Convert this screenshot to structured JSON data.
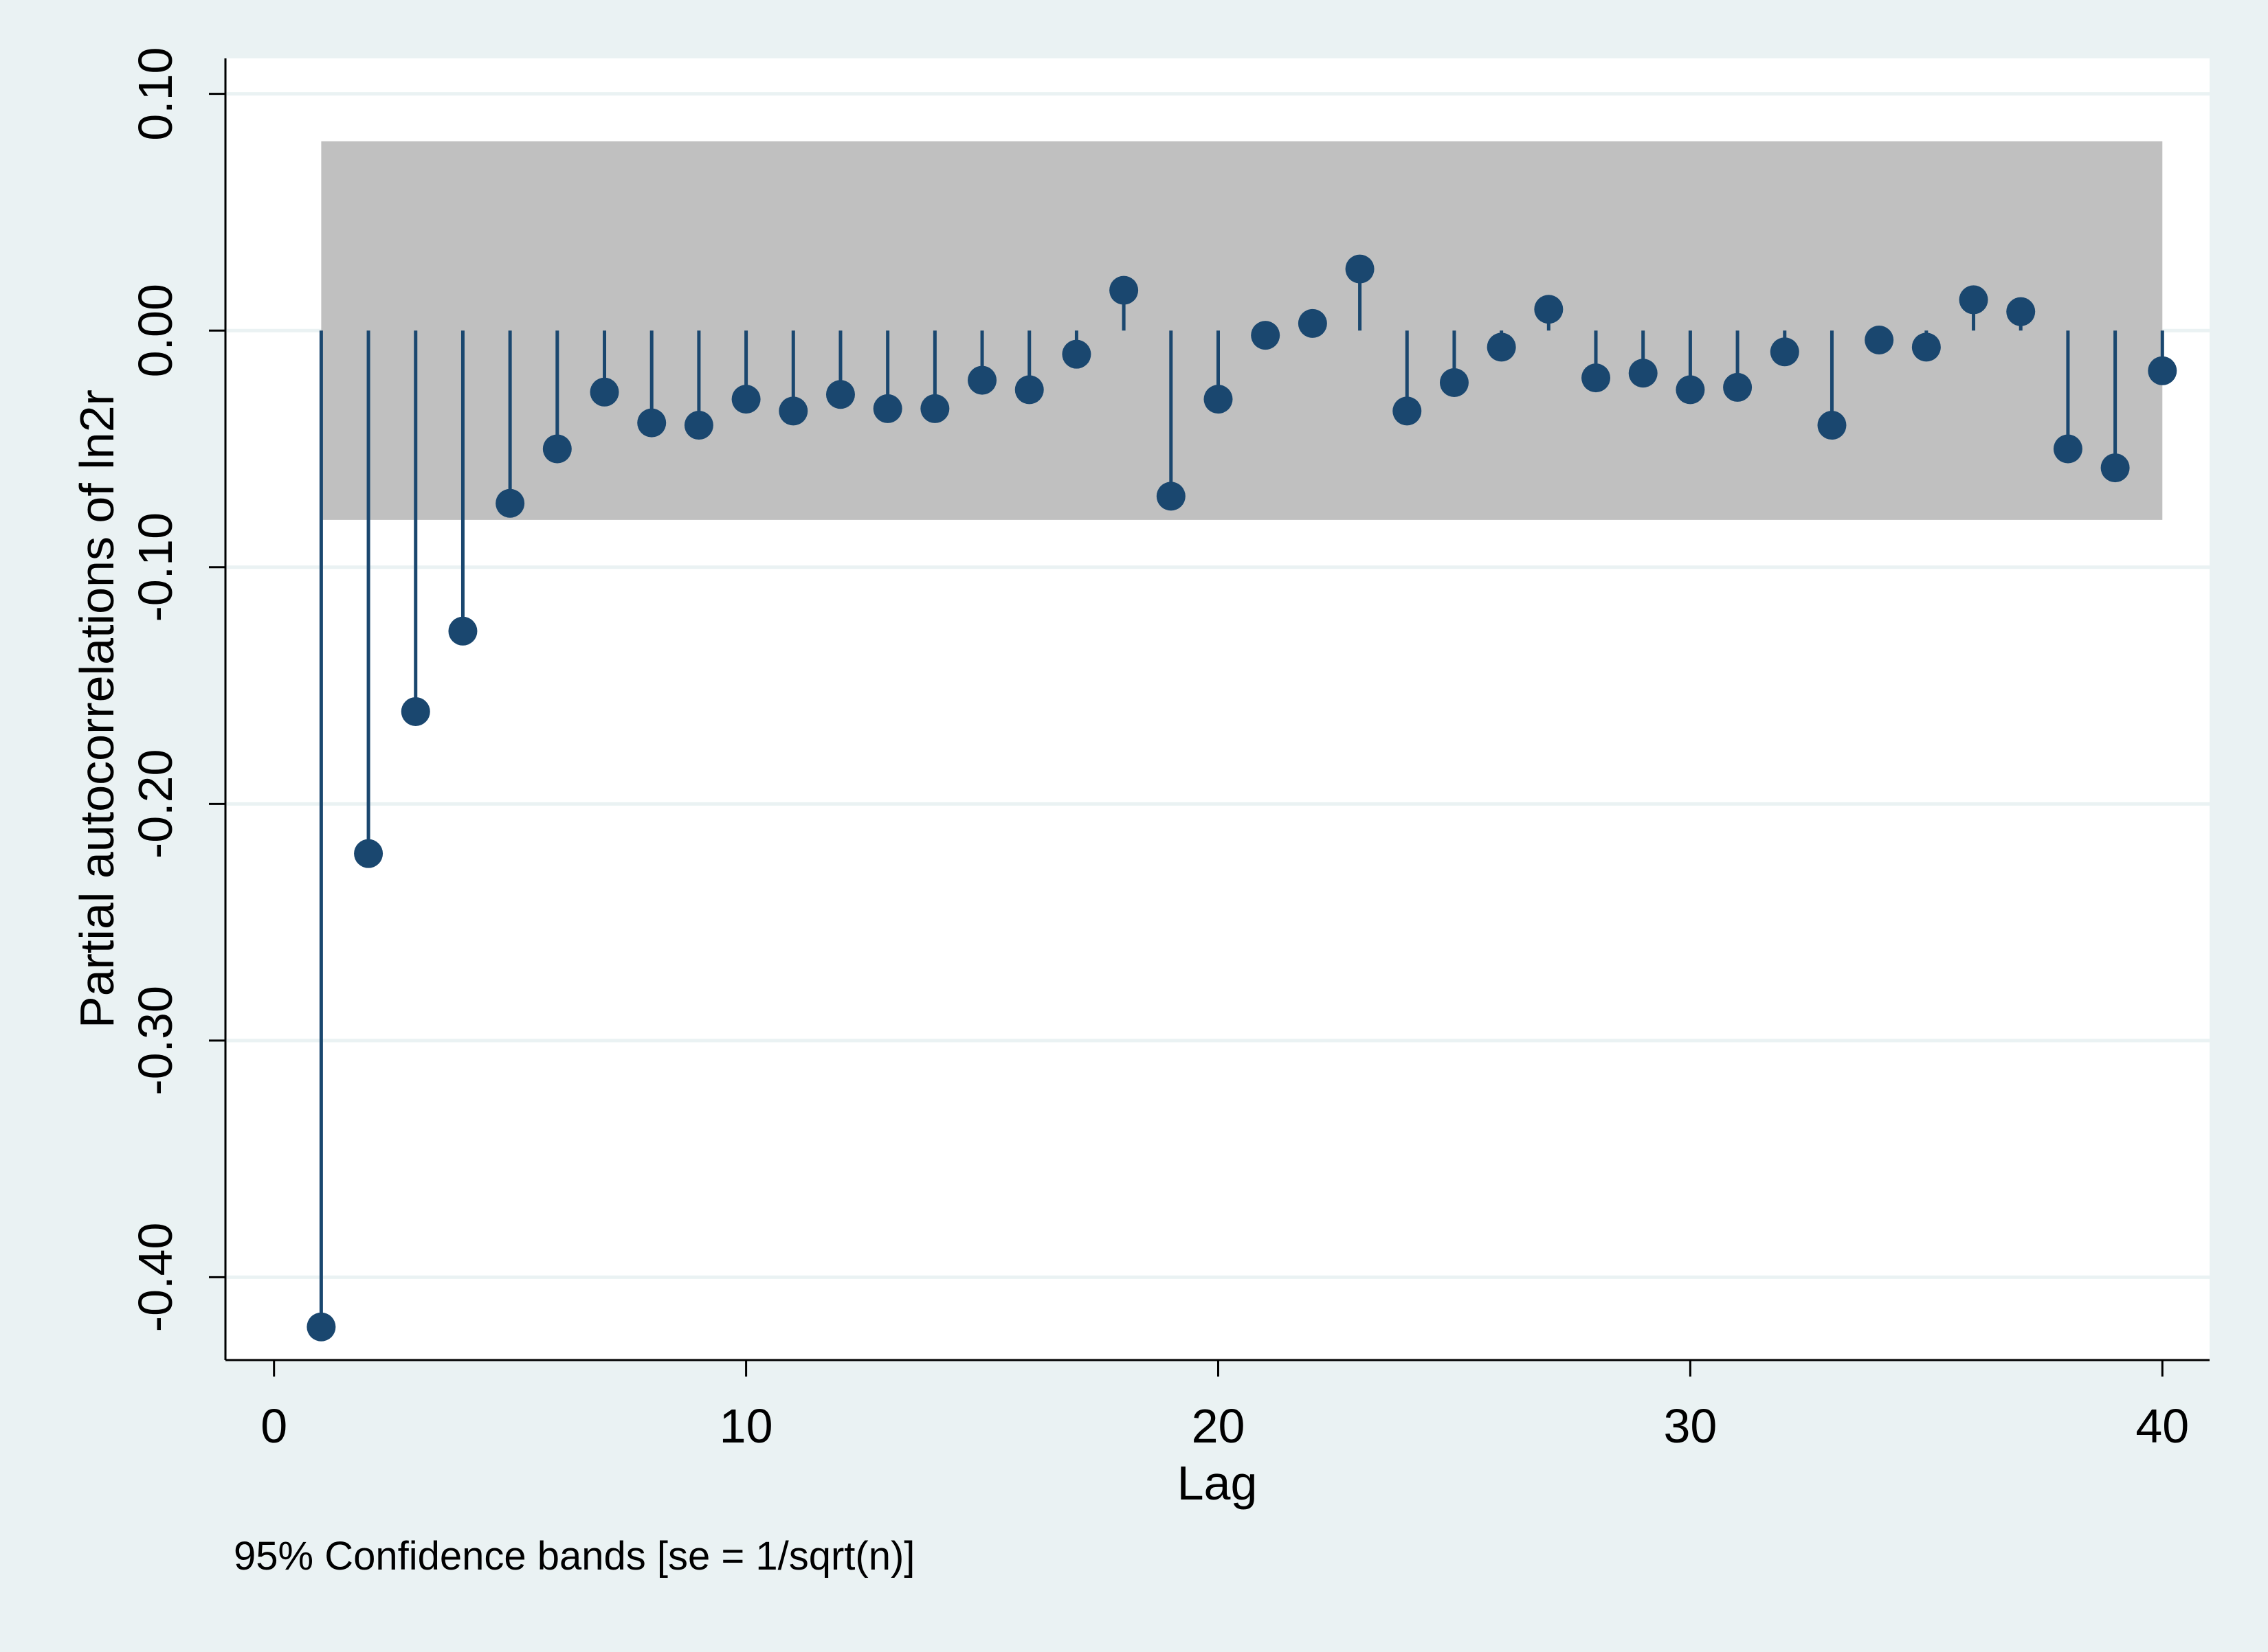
{
  "chart_data": {
    "type": "scatter",
    "style": "stem",
    "title": "",
    "xlabel": "Lag",
    "ylabel": "Partial autocorrelations of ln2r",
    "note": "95% Confidence bands [se = 1/sqrt(n)]",
    "xlim": [
      -1,
      41
    ],
    "ylim": [
      -0.435,
      0.115
    ],
    "x_ticks": [
      0,
      10,
      20,
      30,
      40
    ],
    "x_tick_labels": [
      "0",
      "10",
      "20",
      "30",
      "40"
    ],
    "y_ticks": [
      0.1,
      0.0,
      -0.1,
      -0.2,
      -0.3,
      -0.4
    ],
    "y_tick_labels": [
      "0.10",
      "0.00",
      "-0.10",
      "-0.20",
      "-0.30",
      "-0.40"
    ],
    "grid": true,
    "legend": "none",
    "confidence_band": {
      "x_range": [
        1,
        40
      ],
      "lower": -0.08,
      "upper": 0.08,
      "level": "95%"
    },
    "x": [
      1,
      2,
      3,
      4,
      5,
      6,
      7,
      8,
      9,
      10,
      11,
      12,
      13,
      14,
      15,
      16,
      17,
      18,
      19,
      20,
      21,
      22,
      23,
      24,
      25,
      26,
      27,
      28,
      29,
      30,
      31,
      32,
      33,
      34,
      35,
      36,
      37,
      38,
      39,
      40
    ],
    "values": [
      -0.421,
      -0.221,
      -0.161,
      -0.127,
      -0.073,
      -0.05,
      -0.026,
      -0.039,
      -0.04,
      -0.029,
      -0.034,
      -0.027,
      -0.033,
      -0.033,
      -0.021,
      -0.025,
      -0.01,
      0.017,
      -0.07,
      -0.029,
      -0.002,
      0.003,
      0.026,
      -0.034,
      -0.022,
      -0.007,
      0.009,
      -0.02,
      -0.018,
      -0.025,
      -0.024,
      -0.009,
      -0.04,
      -0.004,
      -0.007,
      0.013,
      0.008,
      -0.05,
      -0.058,
      -0.017
    ],
    "colors": {
      "background": "#eaf2f3",
      "plot": "#ffffff",
      "band": "#c0c0c0",
      "marker": "#1a476f",
      "grid": "#eaf2f3"
    }
  }
}
